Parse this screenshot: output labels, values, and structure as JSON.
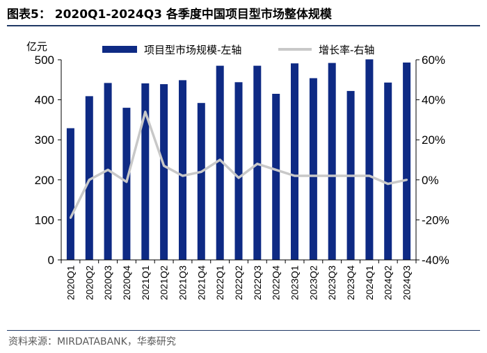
{
  "title": "图表5： 2020Q1-2024Q3 各季度中国项目型市场整体规模",
  "source": "资料来源：MIRDATABANK，华泰研究",
  "chart_data": {
    "type": "bar",
    "categories": [
      "2020Q1",
      "2020Q2",
      "2020Q3",
      "2020Q4",
      "2021Q1",
      "2021Q2",
      "2021Q3",
      "2021Q4",
      "2022Q1",
      "2022Q2",
      "2022Q3",
      "2022Q4",
      "2023Q1",
      "2023Q2",
      "2023Q3",
      "2023Q4",
      "2024Q1",
      "2024Q2",
      "2024Q3"
    ],
    "series": [
      {
        "name": "项目型市场规模-左轴",
        "type": "bar",
        "axis": "left",
        "color": "#0e2a84",
        "values": [
          329,
          409,
          442,
          380,
          441,
          439,
          449,
          392,
          485,
          444,
          485,
          415,
          491,
          454,
          492,
          422,
          501,
          443,
          493
        ]
      },
      {
        "name": "增长率-右轴",
        "type": "line",
        "axis": "right",
        "color": "#c8c8c8",
        "values": [
          -19,
          0,
          5,
          -1,
          34,
          7,
          2,
          4,
          10,
          1,
          8,
          5,
          2,
          2,
          2,
          2,
          2,
          -2,
          0
        ]
      }
    ],
    "y_unit": "亿元",
    "ylim": [
      0,
      500
    ],
    "yticks": [
      0,
      100,
      200,
      300,
      400,
      500
    ],
    "y2lim": [
      -40,
      60
    ],
    "y2ticks": [
      "-40%",
      "-20%",
      "0%",
      "20%",
      "40%",
      "60%"
    ],
    "legend_position": "top",
    "grid": false
  }
}
